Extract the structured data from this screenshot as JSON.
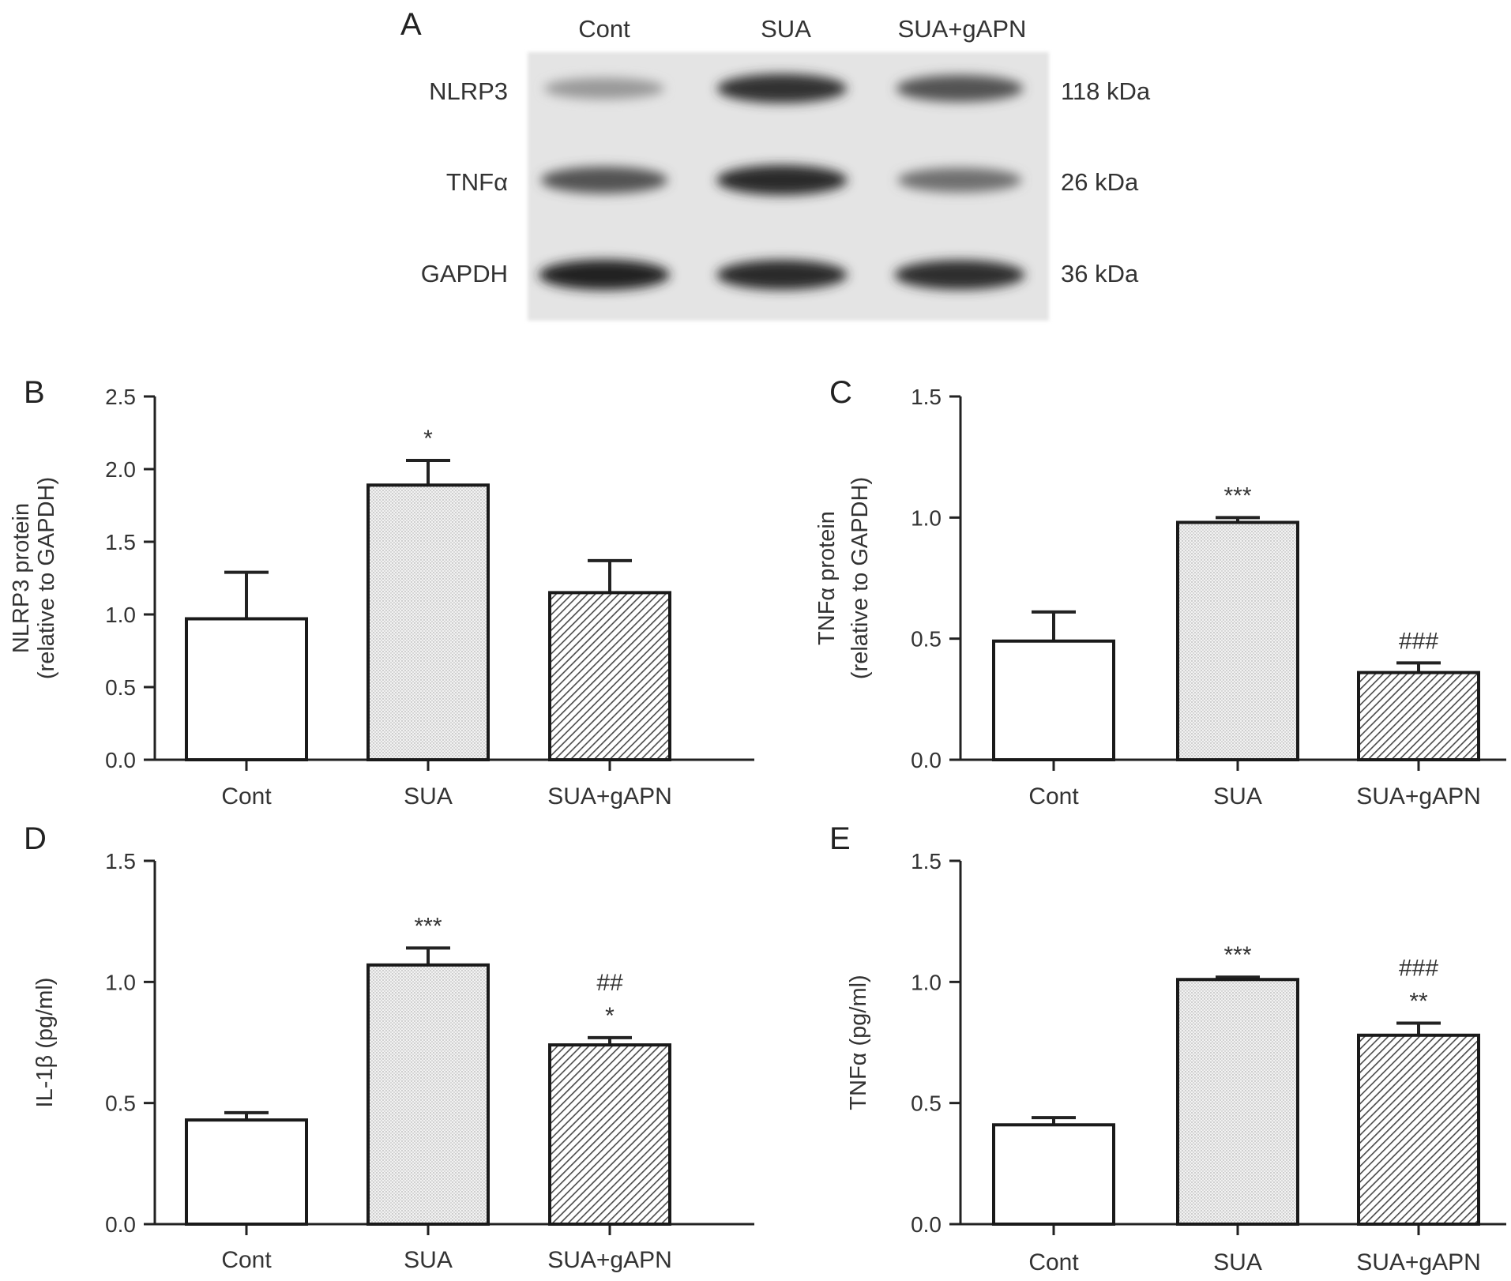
{
  "blot": {
    "panel_label": "A",
    "lanes": [
      "Cont",
      "SUA",
      "SUA+gAPN"
    ],
    "rows": [
      {
        "label": "NLRP3",
        "kda": "118 kDa",
        "intensity": [
          0.35,
          0.85,
          0.7
        ]
      },
      {
        "label": "TNFα",
        "kda": "26 kDa",
        "intensity": [
          0.7,
          0.9,
          0.55
        ]
      },
      {
        "label": "GAPDH",
        "kda": "36 kDa",
        "intensity": [
          0.92,
          0.9,
          0.88
        ]
      }
    ]
  },
  "chart_data": [
    {
      "panel_label": "B",
      "type": "bar",
      "categories": [
        "Cont",
        "SUA",
        "SUA+gAPN"
      ],
      "values": [
        0.97,
        1.89,
        1.15
      ],
      "errors": [
        0.32,
        0.17,
        0.22
      ],
      "annotations": [
        [],
        [
          "*"
        ],
        []
      ],
      "ylabel": [
        "NLRP3 protein",
        "(relative to GAPDH)"
      ],
      "ylim": [
        0,
        2.5
      ],
      "yticks": [
        "0.0",
        "0.5",
        "1.0",
        "1.5",
        "2.0",
        "2.5"
      ],
      "fills": [
        "white",
        "dots",
        "hatch"
      ]
    },
    {
      "panel_label": "C",
      "type": "bar",
      "categories": [
        "Cont",
        "SUA",
        "SUA+gAPN"
      ],
      "values": [
        0.49,
        0.98,
        0.36
      ],
      "errors": [
        0.12,
        0.02,
        0.04
      ],
      "annotations": [
        [],
        [
          "***"
        ],
        [
          "###"
        ]
      ],
      "ylabel": [
        "TNFα protein",
        "(relative to GAPDH)"
      ],
      "ylim": [
        0,
        1.5
      ],
      "yticks": [
        "0.0",
        "0.5",
        "1.0",
        "1.5"
      ],
      "fills": [
        "white",
        "dots",
        "hatch"
      ]
    },
    {
      "panel_label": "D",
      "type": "bar",
      "categories": [
        "Cont",
        "SUA",
        "SUA+gAPN"
      ],
      "values": [
        0.43,
        1.07,
        0.74
      ],
      "errors": [
        0.03,
        0.07,
        0.03
      ],
      "annotations": [
        [],
        [
          "***"
        ],
        [
          "##",
          "*"
        ]
      ],
      "ylabel": [
        "IL-1β (pg/ml)"
      ],
      "ylim": [
        0,
        1.5
      ],
      "yticks": [
        "0.0",
        "0.5",
        "1.0",
        "1.5"
      ],
      "fills": [
        "white",
        "dots",
        "hatch"
      ]
    },
    {
      "panel_label": "E",
      "type": "bar",
      "categories": [
        "Cont",
        "SUA",
        "SUA+gAPN"
      ],
      "values": [
        0.41,
        1.01,
        0.78
      ],
      "errors": [
        0.03,
        0.01,
        0.05
      ],
      "annotations": [
        [],
        [
          "***"
        ],
        [
          "###",
          "**"
        ]
      ],
      "ylabel": [
        "TNFα (pg/ml)"
      ],
      "ylim": [
        0,
        1.5
      ],
      "yticks": [
        "0.0",
        "0.5",
        "1.0",
        "1.5"
      ],
      "fills": [
        "white",
        "dots",
        "hatch"
      ]
    }
  ]
}
